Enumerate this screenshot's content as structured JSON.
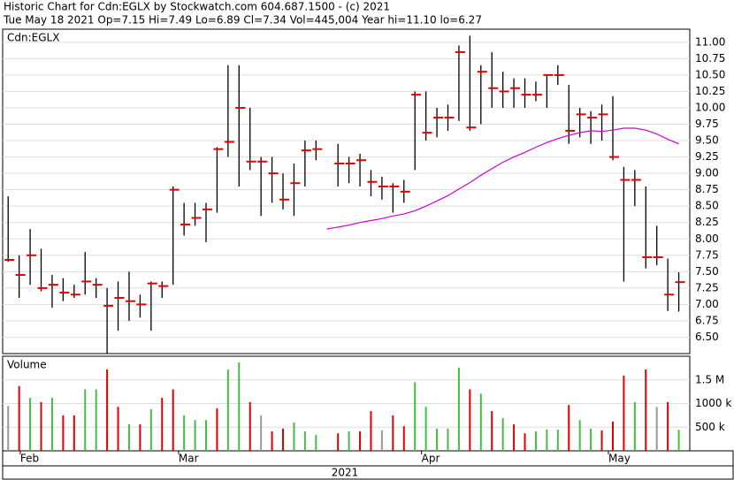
{
  "chart_data": {
    "type": "ohlc",
    "title": "Historic Chart for Cdn:EGLX by Stockwatch.com 604.687.1500 - (c) 2021",
    "subtitle": "Tue May 18 2021  Op=7.15  Hi=7.49  Lo=6.89  Cl=7.34  Vol=445,004  Year hi=11.10  lo=6.27",
    "symbol_label": "Cdn:EGLX",
    "volume_label": "Volume",
    "year_label": "2021",
    "xlim": [
      -0.5,
      62
    ],
    "xticks": [
      {
        "value": 1.1,
        "label": "Feb"
      },
      {
        "value": 15.5,
        "label": "Mar"
      },
      {
        "value": 37.6,
        "label": "Apr"
      },
      {
        "value": 54.6,
        "label": "May"
      }
    ],
    "ylim": [
      6.25,
      11.2
    ],
    "yticks": [
      {
        "value": 6.5,
        "label": "6.50"
      },
      {
        "value": 6.75,
        "label": "6.75"
      },
      {
        "value": 7,
        "label": "7.00"
      },
      {
        "value": 7.25,
        "label": "7.25"
      },
      {
        "value": 7.5,
        "label": "7.50"
      },
      {
        "value": 7.75,
        "label": "7.75"
      },
      {
        "value": 8,
        "label": "8.00"
      },
      {
        "value": 8.25,
        "label": "8.25"
      },
      {
        "value": 8.5,
        "label": "8.50"
      },
      {
        "value": 8.75,
        "label": "8.75"
      },
      {
        "value": 9,
        "label": "9.00"
      },
      {
        "value": 9.25,
        "label": "9.25"
      },
      {
        "value": 9.5,
        "label": "9.50"
      },
      {
        "value": 9.75,
        "label": "9.75"
      },
      {
        "value": 10,
        "label": "10.00"
      },
      {
        "value": 10.25,
        "label": "10.25"
      },
      {
        "value": 10.5,
        "label": "10.50"
      },
      {
        "value": 10.75,
        "label": "10.75"
      },
      {
        "value": 11,
        "label": "11.00"
      }
    ],
    "grid": true,
    "bar_color": "#000000",
    "close_color": "#e00000",
    "ma_color": "#d000d0",
    "high": [
      8.65,
      7.75,
      8.15,
      7.85,
      7.45,
      7.4,
      7.3,
      7.8,
      7.4,
      7.25,
      7.35,
      7.5,
      7.15,
      7.35,
      7.35,
      8.8,
      8.55,
      8.55,
      8.55,
      9.4,
      10.65,
      10.65,
      10,
      9.25,
      9.25,
      9,
      9.15,
      9.5,
      9.5,
      null,
      9.45,
      9.25,
      9.3,
      9.05,
      8.95,
      8.85,
      8.9,
      10.25,
      10.25,
      10,
      10.05,
      10.95,
      11.1,
      10.65,
      10.85,
      10.55,
      10.45,
      10.45,
      10.4,
      10.5,
      10.65,
      10.35,
      10,
      9.95,
      10.05,
      10.18,
      9.1,
      9.05,
      8.8,
      8.2,
      7.7,
      7.49
    ],
    "low": [
      7.65,
      7.1,
      7.3,
      7.2,
      6.95,
      7.05,
      7.1,
      7.15,
      7.1,
      6.25,
      6.6,
      6.75,
      6.8,
      6.6,
      7.1,
      7.3,
      8.05,
      8.2,
      7.95,
      8.4,
      9.25,
      8.8,
      9.05,
      8.35,
      8.55,
      8.45,
      8.35,
      8.8,
      9.2,
      null,
      8.8,
      8.85,
      8.8,
      8.65,
      8.6,
      8.4,
      8.55,
      9.05,
      9.5,
      9.55,
      9.65,
      9.8,
      9.65,
      9.75,
      10,
      10,
      10,
      10,
      10.1,
      10,
      10.35,
      9.45,
      9.55,
      9.45,
      9.5,
      9.2,
      7.35,
      8.5,
      7.55,
      7.6,
      6.9,
      6.89
    ],
    "close": [
      7.68,
      7.45,
      7.75,
      7.25,
      7.3,
      7.18,
      7.15,
      7.35,
      7.3,
      6.98,
      7.1,
      7.05,
      7,
      7.32,
      7.28,
      8.75,
      8.22,
      8.32,
      8.45,
      9.37,
      9.48,
      10,
      9.18,
      9.18,
      9,
      8.6,
      8.85,
      9.35,
      9.37,
      null,
      9.15,
      9.15,
      9.2,
      8.87,
      8.8,
      8.8,
      8.72,
      10.2,
      9.62,
      9.85,
      9.85,
      10.85,
      9.7,
      10.55,
      10.3,
      10.25,
      10.3,
      10.2,
      10.2,
      10.5,
      10.5,
      9.65,
      9.9,
      9.85,
      9.9,
      9.25,
      8.9,
      8.9,
      7.72,
      7.72,
      7.15,
      7.34
    ],
    "ma": [
      null,
      null,
      null,
      null,
      null,
      null,
      null,
      null,
      null,
      null,
      null,
      null,
      null,
      null,
      null,
      null,
      null,
      null,
      null,
      null,
      null,
      null,
      null,
      null,
      null,
      null,
      null,
      null,
      null,
      8.15,
      8.18,
      8.21,
      8.25,
      8.28,
      8.31,
      8.35,
      8.38,
      8.43,
      8.5,
      8.58,
      8.66,
      8.76,
      8.86,
      8.97,
      9.07,
      9.17,
      9.25,
      9.32,
      9.4,
      9.47,
      9.53,
      9.58,
      9.62,
      9.65,
      9.64,
      9.66,
      9.69,
      9.69,
      9.66,
      9.6,
      9.52,
      9.45
    ],
    "volume_ylim": [
      0,
      2000000
    ],
    "volume_yticks": [
      {
        "value": 500000,
        "label": "500 k"
      },
      {
        "value": 1000000,
        "label": "1000 k"
      },
      {
        "value": 1500000,
        "label": "1.5 M"
      }
    ],
    "volume": [
      950000,
      1370000,
      1120000,
      1030000,
      1120000,
      750000,
      750000,
      1300000,
      1300000,
      1720000,
      930000,
      560000,
      560000,
      880000,
      1120000,
      1300000,
      750000,
      650000,
      650000,
      900000,
      1720000,
      1870000,
      1030000,
      750000,
      410000,
      470000,
      600000,
      410000,
      340000,
      null,
      370000,
      410000,
      410000,
      840000,
      430000,
      750000,
      520000,
      1450000,
      930000,
      470000,
      470000,
      1760000,
      1300000,
      1210000,
      840000,
      690000,
      560000,
      370000,
      410000,
      450000,
      450000,
      970000,
      650000,
      470000,
      430000,
      620000,
      1590000,
      1030000,
      1720000,
      930000,
      1030000,
      445004
    ],
    "volume_colors": [
      "#999999",
      "#e00000",
      "#40c040",
      "#e00000",
      "#40c040",
      "#e00000",
      "#e00000",
      "#40c040",
      "#40c040",
      "#e00000",
      "#e00000",
      "#40c040",
      "#e00000",
      "#40c040",
      "#e00000",
      "#e00000",
      "#40c040",
      "#40c040",
      "#40c040",
      "#e00000",
      "#40c040",
      "#40c040",
      "#e00000",
      "#999999",
      "#e00000",
      "#e00000",
      "#40c040",
      "#40c040",
      "#40c040",
      null,
      "#e00000",
      "#40c040",
      "#e00000",
      "#e00000",
      "#999999",
      "#e00000",
      "#e00000",
      "#40c040",
      "#40c040",
      "#40c040",
      "#40c040",
      "#40c040",
      "#e00000",
      "#40c040",
      "#e00000",
      "#40c040",
      "#e00000",
      "#e00000",
      "#40c040",
      "#40c040",
      "#40c040",
      "#e00000",
      "#40c040",
      "#40c040",
      "#e00000",
      "#e00000",
      "#e00000",
      "#40c040",
      "#e00000",
      "#999999",
      "#e00000",
      "#40c040"
    ]
  }
}
